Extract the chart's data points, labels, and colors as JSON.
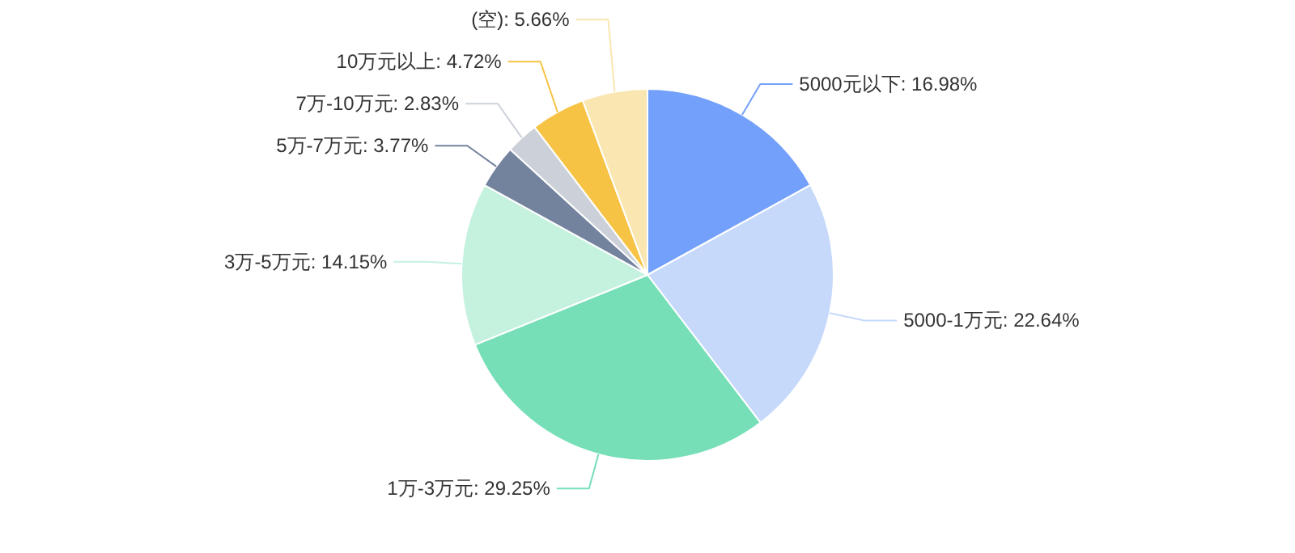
{
  "chart_data": {
    "type": "pie",
    "categories": [
      "5000元以下",
      "5000-1万元",
      "1万-3万元",
      "3万-5万元",
      "5万-7万元",
      "7万-10万元",
      "10万元以上",
      "(空)"
    ],
    "values": [
      16.98,
      22.64,
      29.25,
      14.15,
      3.77,
      2.83,
      4.72,
      5.66
    ],
    "colors": [
      "#73a0fa",
      "#c6d9fb",
      "#76dfb8",
      "#c5f1df",
      "#73839e",
      "#ccd1d9",
      "#f6c344",
      "#f9e6b0"
    ],
    "value_labels": [
      "16.98%",
      "22.64%",
      "29.25%",
      "14.15%",
      "3.77%",
      "2.83%",
      "4.72%",
      "5.66%"
    ]
  }
}
